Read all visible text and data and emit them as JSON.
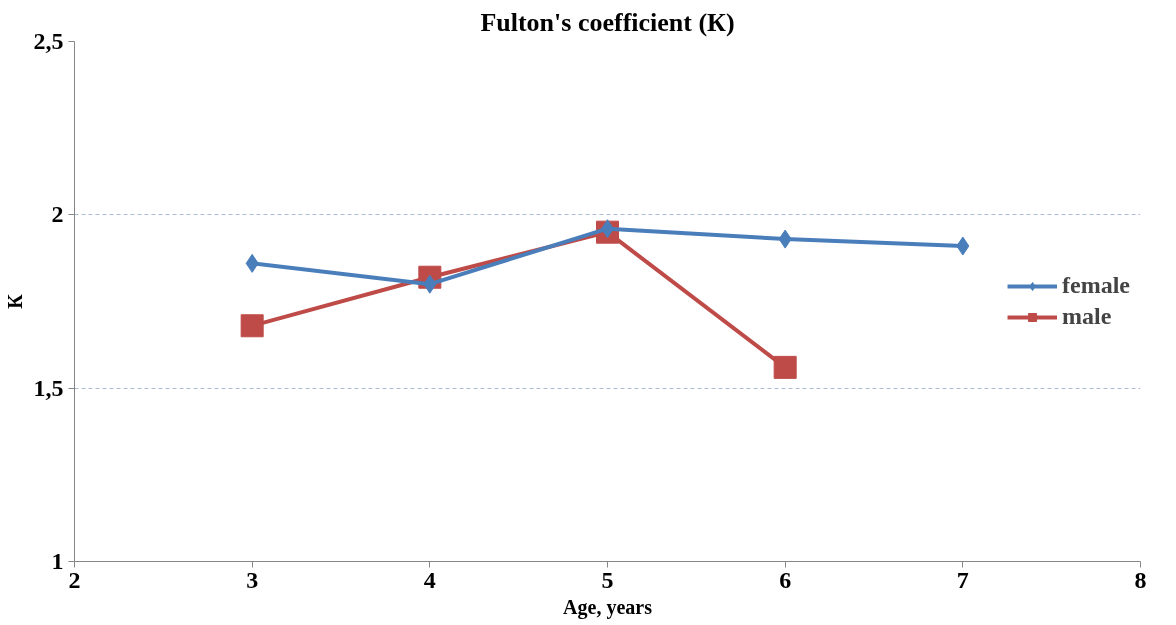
{
  "chart_data": {
    "type": "line",
    "title": "Fulton's coefficient (К)",
    "xlabel": "Age, years",
    "ylabel": "К",
    "x": [
      3,
      4,
      5,
      6,
      7
    ],
    "series": [
      {
        "name": "female",
        "color": "#4a7ebb",
        "marker": "diamond",
        "values": [
          1.86,
          1.8,
          1.96,
          1.93,
          1.91
        ]
      },
      {
        "name": "male",
        "color": "#be4b48",
        "marker": "square",
        "values": [
          1.68,
          1.82,
          1.95,
          1.56,
          null
        ]
      }
    ],
    "xlim": [
      2,
      8
    ],
    "xticks": [
      2,
      3,
      4,
      5,
      6,
      7,
      8
    ],
    "ylim": [
      1,
      2.5
    ],
    "yticks": [
      1,
      {
        "value": 1.5,
        "label": "1,5"
      },
      2,
      {
        "value": 2.5,
        "label": "2,5"
      }
    ],
    "grid": "y",
    "legend": "right",
    "line_style": "solid"
  }
}
